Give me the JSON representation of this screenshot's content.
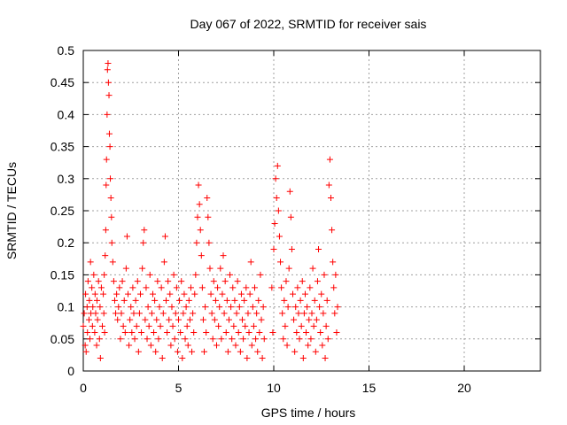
{
  "chart_data": {
    "type": "scatter",
    "title": "Day 067 of 2022, SRMTID for receiver sais",
    "xlabel": "GPS time / hours",
    "ylabel": "SRMTID / TECUs",
    "xlim": [
      0,
      24
    ],
    "ylim": [
      0,
      0.5
    ],
    "x_ticks": [
      "0",
      "5",
      "10",
      "15",
      "20"
    ],
    "y_ticks": [
      "0",
      "0.05",
      "0.1",
      "0.15",
      "0.2",
      "0.25",
      "0.3",
      "0.35",
      "0.4",
      "0.45",
      "0.5"
    ],
    "grid": true,
    "marker": "plus",
    "colors": {
      "series": "#ff0000",
      "grid": "#a0a0a0",
      "axes": "#000000"
    },
    "series": [
      {
        "values": [
          [
            0.0,
            0.07
          ],
          [
            0.05,
            0.09
          ],
          [
            0.1,
            0.04
          ],
          [
            0.12,
            0.12
          ],
          [
            0.15,
            0.03
          ],
          [
            0.2,
            0.1
          ],
          [
            0.22,
            0.06
          ],
          [
            0.25,
            0.14
          ],
          [
            0.3,
            0.08
          ],
          [
            0.32,
            0.11
          ],
          [
            0.35,
            0.05
          ],
          [
            0.38,
            0.17
          ],
          [
            0.4,
            0.09
          ],
          [
            0.45,
            0.13
          ],
          [
            0.48,
            0.07
          ],
          [
            0.5,
            0.1
          ],
          [
            0.55,
            0.15
          ],
          [
            0.6,
            0.06
          ],
          [
            0.62,
            0.12
          ],
          [
            0.65,
            0.09
          ],
          [
            0.7,
            0.04
          ],
          [
            0.72,
            0.11
          ],
          [
            0.75,
            0.08
          ],
          [
            0.8,
            0.14
          ],
          [
            0.85,
            0.05
          ],
          [
            0.88,
            0.1
          ],
          [
            0.9,
            0.02
          ],
          [
            0.95,
            0.13
          ],
          [
            1.0,
            0.07
          ],
          [
            1.05,
            0.12
          ],
          [
            1.08,
            0.09
          ],
          [
            1.1,
            0.15
          ],
          [
            1.12,
            0.06
          ],
          [
            1.15,
            0.18
          ],
          [
            1.18,
            0.22
          ],
          [
            1.2,
            0.29
          ],
          [
            1.22,
            0.33
          ],
          [
            1.25,
            0.4
          ],
          [
            1.27,
            0.47
          ],
          [
            1.3,
            0.48
          ],
          [
            1.32,
            0.45
          ],
          [
            1.35,
            0.43
          ],
          [
            1.37,
            0.37
          ],
          [
            1.4,
            0.35
          ],
          [
            1.42,
            0.3
          ],
          [
            1.45,
            0.27
          ],
          [
            1.48,
            0.24
          ],
          [
            1.5,
            0.2
          ],
          [
            1.55,
            0.17
          ],
          [
            1.6,
            0.14
          ],
          [
            1.65,
            0.11
          ],
          [
            1.7,
            0.09
          ],
          [
            1.75,
            0.12
          ],
          [
            1.8,
            0.08
          ],
          [
            1.85,
            0.1
          ],
          [
            1.9,
            0.13
          ],
          [
            1.95,
            0.05
          ],
          [
            2.0,
            0.09
          ],
          [
            2.05,
            0.14
          ],
          [
            2.1,
            0.07
          ],
          [
            2.15,
            0.11
          ],
          [
            2.2,
            0.06
          ],
          [
            2.25,
            0.16
          ],
          [
            2.3,
            0.21
          ],
          [
            2.35,
            0.12
          ],
          [
            2.4,
            0.04
          ],
          [
            2.45,
            0.08
          ],
          [
            2.5,
            0.1
          ],
          [
            2.55,
            0.06
          ],
          [
            2.6,
            0.13
          ],
          [
            2.65,
            0.09
          ],
          [
            2.7,
            0.05
          ],
          [
            2.75,
            0.11
          ],
          [
            2.8,
            0.07
          ],
          [
            2.85,
            0.14
          ],
          [
            2.9,
            0.03
          ],
          [
            2.95,
            0.09
          ],
          [
            3.0,
            0.12
          ],
          [
            3.05,
            0.06
          ],
          [
            3.1,
            0.16
          ],
          [
            3.15,
            0.2
          ],
          [
            3.2,
            0.22
          ],
          [
            3.25,
            0.08
          ],
          [
            3.3,
            0.13
          ],
          [
            3.35,
            0.05
          ],
          [
            3.4,
            0.1
          ],
          [
            3.45,
            0.07
          ],
          [
            3.5,
            0.15
          ],
          [
            3.55,
            0.04
          ],
          [
            3.6,
            0.09
          ],
          [
            3.65,
            0.12
          ],
          [
            3.7,
            0.06
          ],
          [
            3.75,
            0.11
          ],
          [
            3.8,
            0.03
          ],
          [
            3.85,
            0.08
          ],
          [
            3.9,
            0.14
          ],
          [
            3.95,
            0.05
          ],
          [
            4.0,
            0.1
          ],
          [
            4.05,
            0.07
          ],
          [
            4.1,
            0.13
          ],
          [
            4.15,
            0.02
          ],
          [
            4.2,
            0.09
          ],
          [
            4.25,
            0.17
          ],
          [
            4.3,
            0.21
          ],
          [
            4.35,
            0.11
          ],
          [
            4.4,
            0.06
          ],
          [
            4.45,
            0.14
          ],
          [
            4.5,
            0.08
          ],
          [
            4.55,
            0.12
          ],
          [
            4.6,
            0.04
          ],
          [
            4.65,
            0.1
          ],
          [
            4.7,
            0.07
          ],
          [
            4.75,
            0.15
          ],
          [
            4.8,
            0.05
          ],
          [
            4.85,
            0.09
          ],
          [
            4.9,
            0.13
          ],
          [
            4.95,
            0.03
          ],
          [
            5.0,
            0.08
          ],
          [
            5.05,
            0.11
          ],
          [
            5.1,
            0.06
          ],
          [
            5.15,
            0.14
          ],
          [
            5.2,
            0.02
          ],
          [
            5.25,
            0.09
          ],
          [
            5.3,
            0.12
          ],
          [
            5.35,
            0.05
          ],
          [
            5.4,
            0.1
          ],
          [
            5.45,
            0.07
          ],
          [
            5.5,
            0.04
          ],
          [
            5.55,
            0.11
          ],
          [
            5.6,
            0.08
          ],
          [
            5.65,
            0.13
          ],
          [
            5.7,
            0.03
          ],
          [
            5.75,
            0.09
          ],
          [
            5.8,
            0.06
          ],
          [
            5.85,
            0.12
          ],
          [
            5.9,
            0.15
          ],
          [
            5.95,
            0.2
          ],
          [
            6.0,
            0.24
          ],
          [
            6.05,
            0.29
          ],
          [
            6.1,
            0.26
          ],
          [
            6.15,
            0.22
          ],
          [
            6.2,
            0.18
          ],
          [
            6.25,
            0.13
          ],
          [
            6.3,
            0.08
          ],
          [
            6.35,
            0.03
          ],
          [
            6.4,
            0.1
          ],
          [
            6.45,
            0.06
          ],
          [
            6.5,
            0.27
          ],
          [
            6.55,
            0.24
          ],
          [
            6.6,
            0.2
          ],
          [
            6.65,
            0.16
          ],
          [
            6.7,
            0.12
          ],
          [
            6.75,
            0.09
          ],
          [
            6.8,
            0.05
          ],
          [
            6.85,
            0.14
          ],
          [
            6.9,
            0.08
          ],
          [
            6.95,
            0.11
          ],
          [
            7.0,
            0.04
          ],
          [
            7.05,
            0.13
          ],
          [
            7.1,
            0.07
          ],
          [
            7.15,
            0.1
          ],
          [
            7.2,
            0.16
          ],
          [
            7.25,
            0.05
          ],
          [
            7.3,
            0.12
          ],
          [
            7.35,
            0.18
          ],
          [
            7.4,
            0.09
          ],
          [
            7.45,
            0.14
          ],
          [
            7.5,
            0.06
          ],
          [
            7.55,
            0.11
          ],
          [
            7.6,
            0.03
          ],
          [
            7.65,
            0.08
          ],
          [
            7.7,
            0.15
          ],
          [
            7.75,
            0.1
          ],
          [
            7.8,
            0.05
          ],
          [
            7.85,
            0.13
          ],
          [
            7.9,
            0.07
          ],
          [
            7.95,
            0.11
          ],
          [
            8.0,
            0.04
          ],
          [
            8.05,
            0.09
          ],
          [
            8.1,
            0.14
          ],
          [
            8.15,
            0.06
          ],
          [
            8.2,
            0.1
          ],
          [
            8.25,
            0.03
          ],
          [
            8.3,
            0.12
          ],
          [
            8.35,
            0.08
          ],
          [
            8.4,
            0.05
          ],
          [
            8.45,
            0.11
          ],
          [
            8.5,
            0.07
          ],
          [
            8.55,
            0.13
          ],
          [
            8.6,
            0.02
          ],
          [
            8.65,
            0.09
          ],
          [
            8.7,
            0.06
          ],
          [
            8.75,
            0.12
          ],
          [
            8.8,
            0.17
          ],
          [
            8.85,
            0.04
          ],
          [
            8.9,
            0.1
          ],
          [
            8.95,
            0.07
          ],
          [
            9.0,
            0.13
          ],
          [
            9.05,
            0.05
          ],
          [
            9.1,
            0.09
          ],
          [
            9.15,
            0.03
          ],
          [
            9.2,
            0.11
          ],
          [
            9.25,
            0.06
          ],
          [
            9.3,
            0.15
          ],
          [
            9.35,
            0.08
          ],
          [
            9.4,
            0.02
          ],
          [
            9.45,
            0.1
          ],
          [
            9.5,
            0.05
          ],
          [
            9.9,
            0.13
          ],
          [
            9.95,
            0.06
          ],
          [
            10.0,
            0.19
          ],
          [
            10.05,
            0.23
          ],
          [
            10.1,
            0.3
          ],
          [
            10.15,
            0.27
          ],
          [
            10.2,
            0.32
          ],
          [
            10.25,
            0.25
          ],
          [
            10.3,
            0.21
          ],
          [
            10.35,
            0.17
          ],
          [
            10.4,
            0.13
          ],
          [
            10.45,
            0.09
          ],
          [
            10.5,
            0.05
          ],
          [
            10.55,
            0.11
          ],
          [
            10.6,
            0.07
          ],
          [
            10.65,
            0.14
          ],
          [
            10.7,
            0.04
          ],
          [
            10.75,
            0.1
          ],
          [
            10.8,
            0.16
          ],
          [
            10.85,
            0.28
          ],
          [
            10.9,
            0.24
          ],
          [
            10.95,
            0.19
          ],
          [
            11.0,
            0.12
          ],
          [
            11.05,
            0.08
          ],
          [
            11.1,
            0.03
          ],
          [
            11.15,
            0.1
          ],
          [
            11.2,
            0.06
          ],
          [
            11.25,
            0.13
          ],
          [
            11.3,
            0.09
          ],
          [
            11.35,
            0.05
          ],
          [
            11.4,
            0.11
          ],
          [
            11.45,
            0.07
          ],
          [
            11.5,
            0.14
          ],
          [
            11.55,
            0.02
          ],
          [
            11.6,
            0.09
          ],
          [
            11.65,
            0.12
          ],
          [
            11.7,
            0.06
          ],
          [
            11.75,
            0.1
          ],
          [
            11.8,
            0.04
          ],
          [
            11.85,
            0.08
          ],
          [
            11.9,
            0.13
          ],
          [
            11.95,
            0.05
          ],
          [
            12.0,
            0.09
          ],
          [
            12.05,
            0.16
          ],
          [
            12.1,
            0.07
          ],
          [
            12.15,
            0.11
          ],
          [
            12.2,
            0.03
          ],
          [
            12.25,
            0.08
          ],
          [
            12.3,
            0.14
          ],
          [
            12.35,
            0.19
          ],
          [
            12.4,
            0.1
          ],
          [
            12.45,
            0.06
          ],
          [
            12.5,
            0.12
          ],
          [
            12.55,
            0.04
          ],
          [
            12.6,
            0.09
          ],
          [
            12.65,
            0.15
          ],
          [
            12.7,
            0.02
          ],
          [
            12.75,
            0.07
          ],
          [
            12.8,
            0.11
          ],
          [
            12.85,
            0.05
          ],
          [
            12.9,
            0.29
          ],
          [
            12.95,
            0.33
          ],
          [
            13.0,
            0.27
          ],
          [
            13.05,
            0.22
          ],
          [
            13.1,
            0.17
          ],
          [
            13.15,
            0.13
          ],
          [
            13.2,
            0.09
          ],
          [
            13.25,
            0.15
          ],
          [
            13.3,
            0.06
          ],
          [
            13.35,
            0.1
          ]
        ]
      }
    ]
  }
}
